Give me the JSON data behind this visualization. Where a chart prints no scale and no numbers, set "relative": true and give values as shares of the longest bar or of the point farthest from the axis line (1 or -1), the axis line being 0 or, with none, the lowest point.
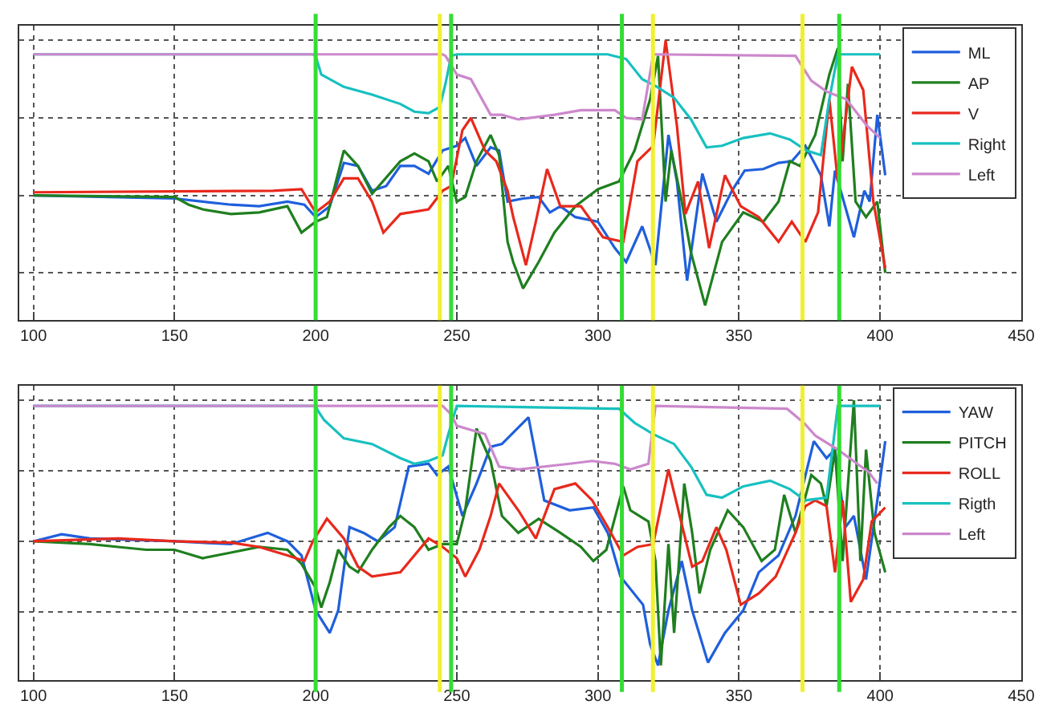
{
  "chart_data": [
    {
      "type": "line",
      "relative": true,
      "xlim": [
        95,
        450
      ],
      "xticks": [
        100,
        150,
        200,
        250,
        300,
        350,
        400,
        450
      ],
      "grid": true,
      "legend": "top right",
      "ref_lines": [
        {
          "axis": "x",
          "value": 200,
          "color": "#33dd33"
        },
        {
          "axis": "x",
          "value": 244,
          "color": "#f0f030"
        },
        {
          "axis": "x",
          "value": 248,
          "color": "#33dd33"
        },
        {
          "axis": "x",
          "value": 308.5,
          "color": "#33dd33"
        },
        {
          "axis": "x",
          "value": 319.5,
          "color": "#f0f030"
        },
        {
          "axis": "x",
          "value": 372.5,
          "color": "#f0f030"
        },
        {
          "axis": "x",
          "value": 385.5,
          "color": "#33dd33"
        }
      ],
      "series": [
        {
          "name": "ML",
          "color": "#1f5fdc",
          "x": [
            100,
            150,
            160,
            170,
            180,
            190,
            196,
            200,
            205,
            210,
            215,
            220,
            225,
            230,
            235,
            240,
            245,
            250,
            253,
            257,
            262,
            265,
            268,
            273.5,
            279,
            283,
            286.7,
            292,
            300,
            306,
            310,
            315.7,
            320.4,
            325,
            328,
            331.6,
            337,
            342,
            347.5,
            352,
            358.6,
            364,
            368.7,
            373.5,
            379,
            382,
            384,
            390.7,
            394.4,
            396.3,
            399,
            401.8
          ],
          "values": [
            0,
            -0.02,
            -0.04,
            -0.06,
            -0.07,
            -0.04,
            -0.06,
            -0.14,
            -0.07,
            0.21,
            0.19,
            0.03,
            0.06,
            0.19,
            0.19,
            0.14,
            0.29,
            0.32,
            0.37,
            0.19,
            0.31,
            0.29,
            -0.04,
            -0.02,
            -0.01,
            -0.11,
            -0.07,
            -0.14,
            -0.17,
            -0.34,
            -0.43,
            -0.2,
            -0.45,
            0.39,
            0.09,
            -0.55,
            0.14,
            -0.17,
            0.03,
            0.16,
            0.17,
            0.21,
            0.22,
            0.32,
            0.13,
            -0.2,
            0.16,
            -0.27,
            0.03,
            -0.04,
            0.52,
            0.13
          ]
        },
        {
          "name": "AP",
          "color": "#1f7f1f",
          "x": [
            100,
            150,
            155,
            160,
            170,
            180,
            190,
            195,
            200,
            204,
            210,
            215,
            220,
            230,
            235,
            240,
            243,
            247,
            250,
            253,
            257,
            262,
            265,
            268,
            270,
            273.5,
            279,
            284.6,
            292,
            300,
            307.5,
            313,
            318.5,
            321.3,
            324,
            326,
            329.7,
            333,
            338,
            344,
            351.5,
            358.6,
            364,
            368,
            371.6,
            377,
            382,
            385,
            386.7,
            388.6,
            391.3,
            395,
            399,
            401.8
          ],
          "values": [
            0,
            -0.01,
            -0.06,
            -0.09,
            -0.12,
            -0.11,
            -0.07,
            -0.24,
            -0.17,
            -0.14,
            0.29,
            0.19,
            0.01,
            0.22,
            0.27,
            0.22,
            0.09,
            0.19,
            -0.04,
            -0.01,
            0.22,
            0.39,
            0.26,
            -0.3,
            -0.43,
            -0.6,
            -0.43,
            -0.24,
            -0.07,
            0.04,
            0.09,
            0.29,
            0.62,
            0.9,
            -0.04,
            0.29,
            -0.04,
            -0.37,
            -0.71,
            -0.3,
            -0.11,
            -0.17,
            -0.04,
            0.22,
            0.19,
            0.39,
            0.78,
            0.95,
            0.22,
            0.72,
            -0.04,
            -0.14,
            -0.04,
            -0.5
          ]
        },
        {
          "name": "V",
          "color": "#e8291c",
          "x": [
            100,
            185,
            195,
            200,
            205,
            210,
            215,
            220,
            224,
            230,
            240,
            245,
            248,
            252,
            255,
            260,
            264,
            268,
            270,
            274.5,
            278,
            282,
            286.7,
            294,
            301.8,
            309,
            314,
            319.6,
            324,
            328,
            331,
            335.5,
            339.4,
            345,
            350.6,
            357,
            364,
            368.7,
            373.5,
            378,
            382,
            385,
            390,
            394,
            397.6,
            401.8
          ],
          "values": [
            0.02,
            0.03,
            0.04,
            -0.11,
            -0.04,
            0.11,
            0.11,
            -0.04,
            -0.24,
            -0.12,
            -0.09,
            0.03,
            0.06,
            0.42,
            0.5,
            0.29,
            0.22,
            0.03,
            -0.14,
            -0.45,
            -0.17,
            0.17,
            -0.07,
            -0.07,
            -0.27,
            -0.3,
            0.22,
            0.32,
            1.0,
            0.45,
            -0.12,
            0.09,
            -0.34,
            0.13,
            -0.07,
            -0.14,
            -0.3,
            -0.17,
            -0.3,
            -0.11,
            0.62,
            0.09,
            0.83,
            0.68,
            -0.04,
            -0.47
          ]
        },
        {
          "name": "Right",
          "color": "#17c0c0",
          "x": [
            100,
            199,
            200,
            202,
            210,
            220,
            230,
            235,
            240,
            244,
            246,
            248,
            250,
            303.5,
            310,
            315.7,
            321,
            327,
            333,
            338.5,
            344,
            351.5,
            361,
            368,
            373.8,
            379,
            382,
            385,
            400
          ],
          "values": [
            0.91,
            0.91,
            0.9,
            0.78,
            0.7,
            0.65,
            0.59,
            0.54,
            0.53,
            0.57,
            0.72,
            0.9,
            0.91,
            0.91,
            0.88,
            0.75,
            0.7,
            0.63,
            0.49,
            0.31,
            0.32,
            0.37,
            0.4,
            0.36,
            0.29,
            0.26,
            0.62,
            0.91,
            0.91
          ]
        },
        {
          "name": "Left",
          "color": "#cc88cc",
          "x": [
            100,
            245,
            246,
            250,
            255,
            262,
            266,
            271.8,
            284.6,
            294,
            306,
            310,
            315.7,
            319.6,
            370,
            375.6,
            381,
            388,
            395.3,
            400
          ],
          "values": [
            0.91,
            0.91,
            0.9,
            0.78,
            0.75,
            0.52,
            0.52,
            0.49,
            0.52,
            0.55,
            0.55,
            0.5,
            0.49,
            0.91,
            0.9,
            0.74,
            0.67,
            0.62,
            0.45,
            0.37
          ]
        }
      ]
    },
    {
      "type": "line",
      "relative": true,
      "xlim": [
        95,
        450
      ],
      "xticks": [
        100,
        150,
        200,
        250,
        300,
        350,
        400,
        450
      ],
      "grid": true,
      "legend": "top right",
      "ref_lines": [
        {
          "axis": "x",
          "value": 200,
          "color": "#33dd33"
        },
        {
          "axis": "x",
          "value": 244,
          "color": "#f0f030"
        },
        {
          "axis": "x",
          "value": 248,
          "color": "#33dd33"
        },
        {
          "axis": "x",
          "value": 308.5,
          "color": "#33dd33"
        },
        {
          "axis": "x",
          "value": 319.5,
          "color": "#f0f030"
        },
        {
          "axis": "x",
          "value": 372.5,
          "color": "#f0f030"
        },
        {
          "axis": "x",
          "value": 385.5,
          "color": "#33dd33"
        }
      ],
      "series": [
        {
          "name": "YAW",
          "color": "#1f5fdc",
          "x": [
            100,
            110,
            120,
            150,
            170,
            183,
            190,
            195,
            200,
            205,
            208,
            212,
            217,
            222,
            228,
            233,
            240,
            243,
            247,
            252,
            257,
            262,
            266,
            275.4,
            281,
            290,
            298.4,
            303.5,
            308,
            316,
            318.5,
            321.3,
            325,
            329.7,
            333.4,
            339,
            345,
            351.5,
            357,
            364,
            370,
            376.5,
            381,
            384,
            387.7,
            390.7,
            395,
            399,
            401.8
          ],
          "values": [
            0,
            0.05,
            0.02,
            0,
            -0.02,
            0.06,
            0,
            -0.1,
            -0.49,
            -0.65,
            -0.49,
            0.1,
            0.06,
            0,
            0.1,
            0.53,
            0.55,
            0.47,
            0.53,
            0.18,
            0.41,
            0.67,
            0.69,
            0.88,
            0.29,
            0.22,
            0.24,
            0.06,
            -0.25,
            -0.45,
            -0.73,
            -0.88,
            -0.49,
            -0.14,
            -0.49,
            -0.86,
            -0.65,
            -0.49,
            -0.22,
            -0.1,
            0.18,
            0.71,
            0.59,
            0.65,
            0.1,
            0.18,
            -0.27,
            0.29,
            0.71
          ]
        },
        {
          "name": "PITCH",
          "color": "#1f7f1f",
          "x": [
            100,
            120,
            130,
            140,
            150,
            160,
            170,
            180,
            190,
            195,
            200,
            202,
            205,
            208,
            212,
            215,
            220,
            226,
            230,
            235,
            240,
            245,
            250,
            253,
            257,
            262,
            266,
            271.8,
            279,
            286.7,
            294,
            298.4,
            303,
            309,
            311.5,
            317.9,
            320.4,
            322.3,
            325,
            327,
            330.6,
            333.4,
            336,
            339.8,
            346,
            351.5,
            358,
            362.7,
            366,
            370,
            375.6,
            379,
            381,
            384,
            386.7,
            390.7,
            393,
            395,
            398,
            401.8
          ],
          "values": [
            0,
            -0.02,
            -0.04,
            -0.06,
            -0.06,
            -0.12,
            -0.08,
            -0.04,
            -0.06,
            -0.16,
            -0.33,
            -0.47,
            -0.29,
            -0.06,
            -0.18,
            -0.22,
            -0.06,
            0.1,
            0.18,
            0.1,
            -0.06,
            -0.02,
            -0.02,
            0.22,
            0.8,
            0.57,
            0.18,
            0.06,
            0.16,
            0.06,
            -0.04,
            -0.14,
            -0.06,
            0.39,
            0.22,
            0.14,
            -0.14,
            -0.88,
            -0.02,
            -0.65,
            0.41,
            0.06,
            -0.37,
            -0.06,
            0.22,
            0.1,
            -0.14,
            -0.06,
            0.33,
            0.06,
            0.47,
            0.41,
            0.25,
            0.65,
            -0.14,
            1.0,
            -0.14,
            0.65,
            0.06,
            -0.22
          ]
        },
        {
          "name": "ROLL",
          "color": "#e8291c",
          "x": [
            100,
            130,
            150,
            170,
            180,
            190,
            196,
            199,
            204,
            210,
            215,
            220,
            230,
            240,
            245,
            250,
            253,
            258,
            262,
            265,
            271.8,
            278,
            284.6,
            292,
            298,
            303.5,
            309,
            314,
            319.6,
            325,
            329,
            333.4,
            337,
            342,
            345.5,
            350.6,
            357,
            363,
            370,
            373.5,
            377,
            381,
            384,
            386.7,
            389.6,
            394,
            397,
            401.8
          ],
          "values": [
            0,
            0.02,
            0,
            -0.01,
            -0.04,
            -0.1,
            -0.14,
            0,
            0.16,
            0.02,
            -0.18,
            -0.25,
            -0.22,
            0.02,
            -0.04,
            -0.12,
            -0.25,
            -0.06,
            0.18,
            0.41,
            0.22,
            0.02,
            0.37,
            0.41,
            0.29,
            0.1,
            -0.1,
            -0.04,
            -0.02,
            0.51,
            0.18,
            -0.18,
            -0.14,
            0.1,
            -0.06,
            -0.45,
            -0.37,
            -0.25,
            0.06,
            0.25,
            0.29,
            0.25,
            -0.22,
            0.29,
            -0.43,
            -0.27,
            0.14,
            0.24
          ]
        },
        {
          "name": "Rigth",
          "color": "#17c0c0",
          "x": [
            100,
            200,
            201,
            203,
            210,
            220,
            230,
            235,
            240,
            245,
            247,
            250,
            307.5,
            313,
            319.6,
            327,
            333,
            338.5,
            344,
            351.5,
            361,
            368,
            373.5,
            381,
            385,
            400
          ],
          "values": [
            0.96,
            0.96,
            0.92,
            0.86,
            0.73,
            0.69,
            0.59,
            0.55,
            0.57,
            0.61,
            0.76,
            0.96,
            0.94,
            0.84,
            0.76,
            0.69,
            0.53,
            0.33,
            0.31,
            0.39,
            0.43,
            0.37,
            0.29,
            0.31,
            0.96,
            0.96
          ]
        },
        {
          "name": "Left",
          "color": "#cc88cc",
          "x": [
            100,
            245,
            248,
            250,
            260,
            265,
            271.8,
            290,
            298,
            306,
            311.5,
            317.9,
            320.4,
            367,
            373,
            377,
            385,
            396,
            399
          ],
          "values": [
            0.96,
            0.96,
            0.9,
            0.82,
            0.76,
            0.53,
            0.51,
            0.55,
            0.57,
            0.55,
            0.51,
            0.55,
            0.96,
            0.94,
            0.84,
            0.75,
            0.65,
            0.49,
            0.41
          ]
        }
      ]
    }
  ]
}
